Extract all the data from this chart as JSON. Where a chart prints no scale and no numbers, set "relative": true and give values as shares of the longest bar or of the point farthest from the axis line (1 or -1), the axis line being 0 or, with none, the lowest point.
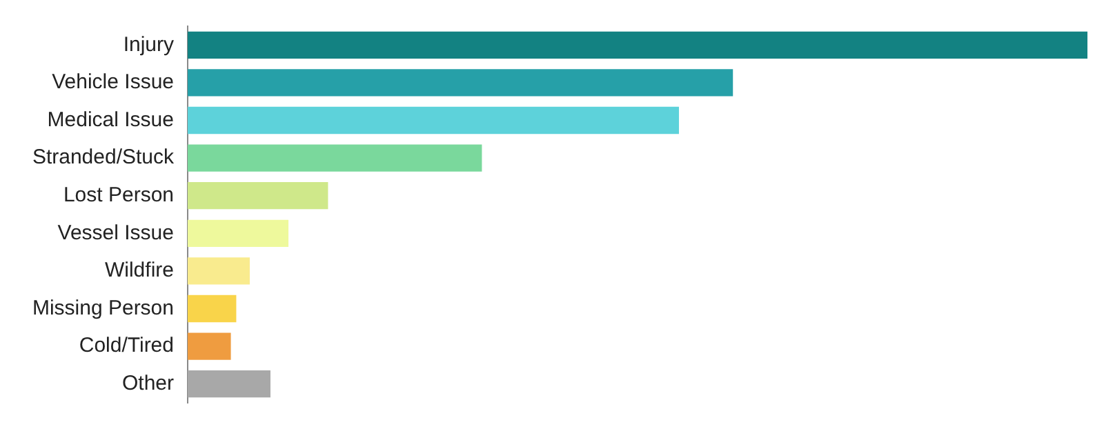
{
  "chart_data": {
    "type": "bar",
    "orientation": "horizontal",
    "relative": true,
    "categories": [
      "Injury",
      "Vehicle Issue",
      "Medical Issue",
      "Stranded/Stuck",
      "Lost Person",
      "Vessel Issue",
      "Wildfire",
      "Missing Person",
      "Cold/Tired",
      "Other"
    ],
    "values": [
      1,
      0.606,
      0.546,
      0.327,
      0.156,
      0.112,
      0.069,
      0.054,
      0.048,
      0.092
    ],
    "colors": [
      "#138282",
      "#26a0a8",
      "#5dd2da",
      "#7ad89c",
      "#cfe88a",
      "#eef99c",
      "#f9eb8e",
      "#f9d44a",
      "#ef9c40",
      "#a8a8a8"
    ],
    "grid": false,
    "legend": false
  }
}
